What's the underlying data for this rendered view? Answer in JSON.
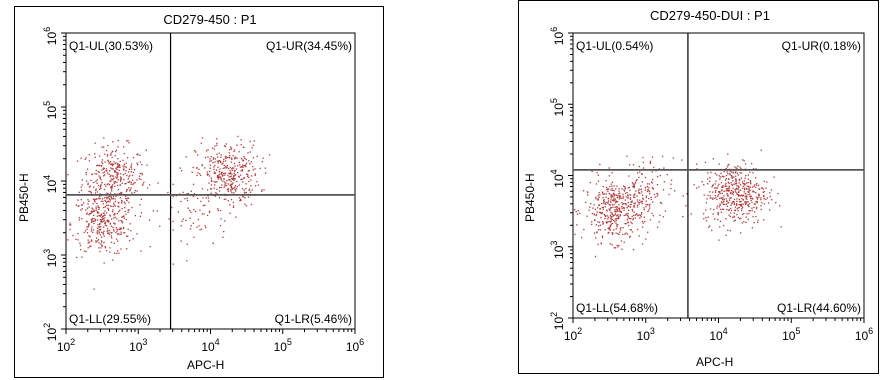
{
  "chart_data": [
    {
      "type": "scatter",
      "title": "CD279-450 : P1",
      "xlabel": "APC-H",
      "ylabel": "PB450-H",
      "scale": "log",
      "xlim": [
        100,
        1000000
      ],
      "ylim": [
        100,
        1000000
      ],
      "x_ticks": [
        "10^2",
        "10^3",
        "10^4",
        "10^5",
        "10^6"
      ],
      "y_ticks": [
        "10^2",
        "10^3",
        "10^4",
        "10^5",
        "10^6"
      ],
      "gate": {
        "x": 2800,
        "y": 6500
      },
      "quadrants": {
        "UL": "Q1-UL(30.53%)",
        "UR": "Q1-UR(34.45%)",
        "LL": "Q1-LL(29.55%)",
        "LR": "Q1-LR(5.46%)"
      },
      "point_color": "#b23b3b",
      "clusters": [
        {
          "x": 450,
          "y": 11000,
          "n": 330
        },
        {
          "x": 320,
          "y": 2700,
          "n": 320
        },
        {
          "x": 17000,
          "y": 12500,
          "n": 370
        },
        {
          "x": 6000,
          "y": 3200,
          "n": 60
        }
      ]
    },
    {
      "type": "scatter",
      "title": "CD279-450-DUI : P1",
      "xlabel": "APC-H",
      "ylabel": "PB450-H",
      "scale": "log",
      "xlim": [
        100,
        1000000
      ],
      "ylim": [
        100,
        1000000
      ],
      "x_ticks": [
        "10^2",
        "10^3",
        "10^4",
        "10^5",
        "10^6"
      ],
      "y_ticks": [
        "10^2",
        "10^3",
        "10^4",
        "10^5",
        "10^6"
      ],
      "gate": {
        "x": 3800,
        "y": 12000
      },
      "quadrants": {
        "UL": "Q1-UL(0.54%)",
        "UR": "Q1-UR(0.18%)",
        "LL": "Q1-LL(54.68%)",
        "LR": "Q1-LR(44.60%)"
      },
      "point_color": "#b23b3b",
      "clusters": [
        {
          "x": 380,
          "y": 3300,
          "n": 420
        },
        {
          "x": 850,
          "y": 6500,
          "n": 120
        },
        {
          "x": 17000,
          "y": 5800,
          "n": 460
        }
      ]
    }
  ]
}
